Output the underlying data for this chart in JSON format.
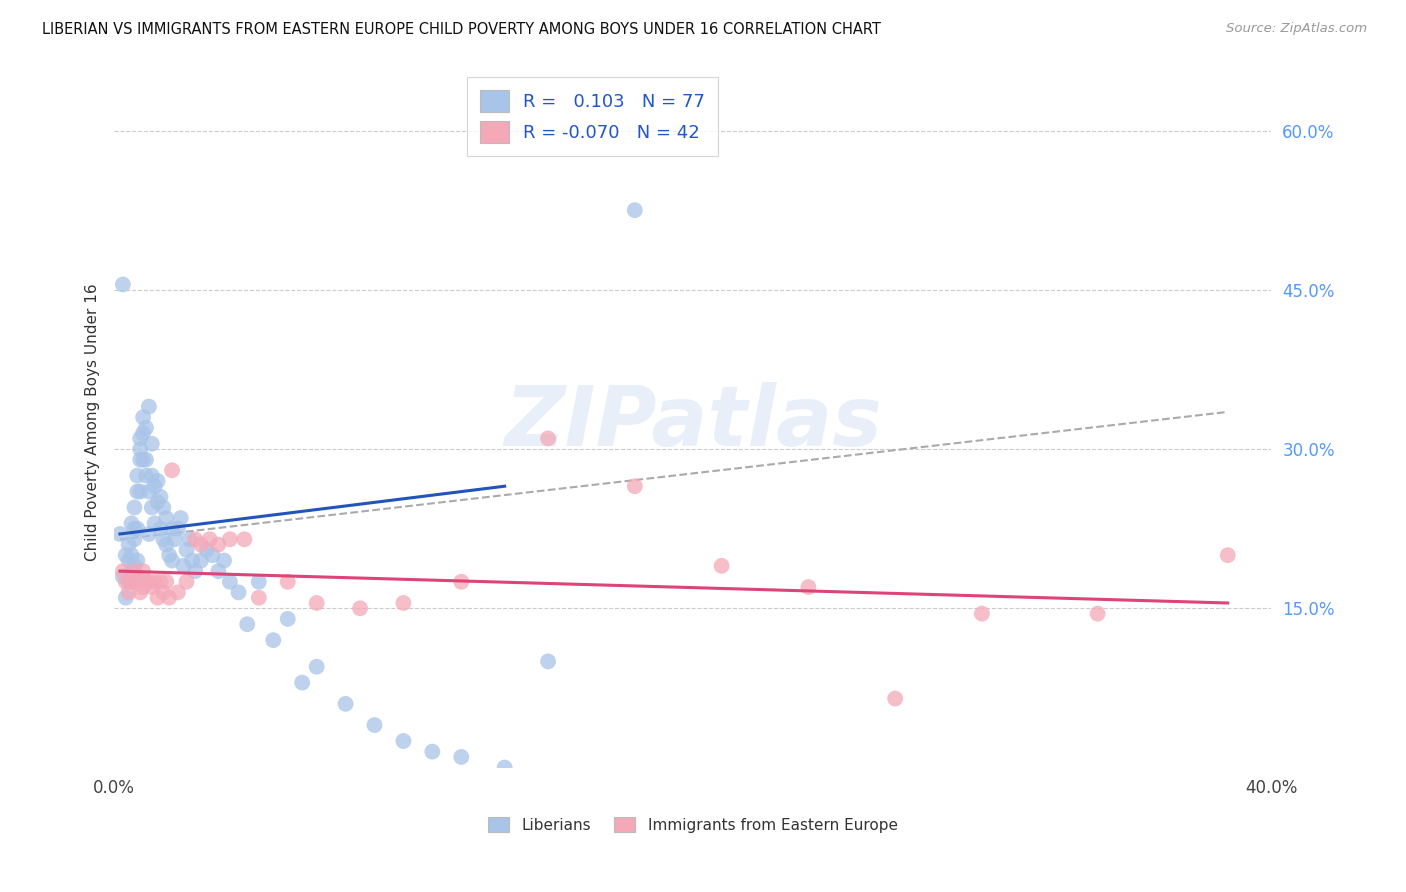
{
  "title": "LIBERIAN VS IMMIGRANTS FROM EASTERN EUROPE CHILD POVERTY AMONG BOYS UNDER 16 CORRELATION CHART",
  "source": "Source: ZipAtlas.com",
  "ylabel": "Child Poverty Among Boys Under 16",
  "xlim": [
    0.0,
    0.4
  ],
  "ylim": [
    0.0,
    0.65
  ],
  "R_liberian": 0.103,
  "N_liberian": 77,
  "R_eastern": -0.07,
  "N_eastern": 42,
  "dot_color_blue": "#a8c4e8",
  "dot_color_pink": "#f4a8b8",
  "line_color_blue": "#2255bb",
  "line_color_pink": "#dd4477",
  "line_color_dashed": "#aaaaaa",
  "watermark_text": "ZIPatlas",
  "background_color": "#ffffff",
  "grid_color": "#cccccc",
  "grid_yticks": [
    0.15,
    0.3,
    0.45,
    0.6
  ],
  "right_ytick_labels": [
    "15.0%",
    "30.0%",
    "45.0%",
    "60.0%"
  ],
  "right_ytick_color": "#5599ff",
  "xtick_labels": [
    "0.0%",
    "",
    "",
    "",
    "40.0%"
  ],
  "bottom_legend_label1": "Liberians",
  "bottom_legend_label2": "Immigrants from Eastern Europe",
  "liberian_x": [
    0.002,
    0.003,
    0.004,
    0.004,
    0.005,
    0.005,
    0.005,
    0.006,
    0.006,
    0.006,
    0.007,
    0.007,
    0.007,
    0.007,
    0.008,
    0.008,
    0.008,
    0.008,
    0.009,
    0.009,
    0.009,
    0.009,
    0.01,
    0.01,
    0.01,
    0.011,
    0.011,
    0.011,
    0.012,
    0.012,
    0.012,
    0.013,
    0.013,
    0.013,
    0.014,
    0.014,
    0.015,
    0.015,
    0.016,
    0.016,
    0.017,
    0.017,
    0.018,
    0.018,
    0.019,
    0.02,
    0.02,
    0.021,
    0.022,
    0.023,
    0.024,
    0.025,
    0.026,
    0.027,
    0.028,
    0.03,
    0.032,
    0.034,
    0.036,
    0.038,
    0.04,
    0.043,
    0.046,
    0.05,
    0.055,
    0.06,
    0.065,
    0.07,
    0.08,
    0.09,
    0.1,
    0.11,
    0.12,
    0.135,
    0.15,
    0.003,
    0.18
  ],
  "liberian_y": [
    0.22,
    0.18,
    0.2,
    0.16,
    0.21,
    0.195,
    0.175,
    0.23,
    0.2,
    0.185,
    0.245,
    0.225,
    0.215,
    0.19,
    0.26,
    0.275,
    0.225,
    0.195,
    0.29,
    0.26,
    0.3,
    0.31,
    0.29,
    0.315,
    0.33,
    0.32,
    0.29,
    0.275,
    0.34,
    0.26,
    0.22,
    0.305,
    0.275,
    0.245,
    0.265,
    0.23,
    0.27,
    0.25,
    0.255,
    0.225,
    0.245,
    0.215,
    0.235,
    0.21,
    0.2,
    0.225,
    0.195,
    0.215,
    0.225,
    0.235,
    0.19,
    0.205,
    0.215,
    0.195,
    0.185,
    0.195,
    0.205,
    0.2,
    0.185,
    0.195,
    0.175,
    0.165,
    0.135,
    0.175,
    0.12,
    0.14,
    0.08,
    0.095,
    0.06,
    0.04,
    0.025,
    0.015,
    0.01,
    0.0,
    0.1,
    0.455,
    0.525
  ],
  "eastern_x": [
    0.003,
    0.004,
    0.005,
    0.006,
    0.007,
    0.007,
    0.008,
    0.009,
    0.01,
    0.01,
    0.011,
    0.012,
    0.013,
    0.014,
    0.015,
    0.016,
    0.017,
    0.018,
    0.019,
    0.02,
    0.022,
    0.025,
    0.028,
    0.03,
    0.033,
    0.036,
    0.04,
    0.045,
    0.05,
    0.06,
    0.07,
    0.085,
    0.1,
    0.12,
    0.15,
    0.18,
    0.21,
    0.24,
    0.27,
    0.3,
    0.34,
    0.385
  ],
  "eastern_y": [
    0.185,
    0.175,
    0.165,
    0.175,
    0.185,
    0.175,
    0.18,
    0.165,
    0.17,
    0.185,
    0.175,
    0.175,
    0.17,
    0.175,
    0.16,
    0.175,
    0.165,
    0.175,
    0.16,
    0.28,
    0.165,
    0.175,
    0.215,
    0.21,
    0.215,
    0.21,
    0.215,
    0.215,
    0.16,
    0.175,
    0.155,
    0.15,
    0.155,
    0.175,
    0.31,
    0.265,
    0.19,
    0.17,
    0.065,
    0.145,
    0.145,
    0.2
  ],
  "blue_line_x": [
    0.002,
    0.135
  ],
  "blue_line_y": [
    0.22,
    0.265
  ],
  "pink_line_x": [
    0.002,
    0.385
  ],
  "pink_line_y": [
    0.185,
    0.155
  ],
  "dashed_line_x": [
    0.002,
    0.385
  ],
  "dashed_line_y": [
    0.215,
    0.335
  ]
}
